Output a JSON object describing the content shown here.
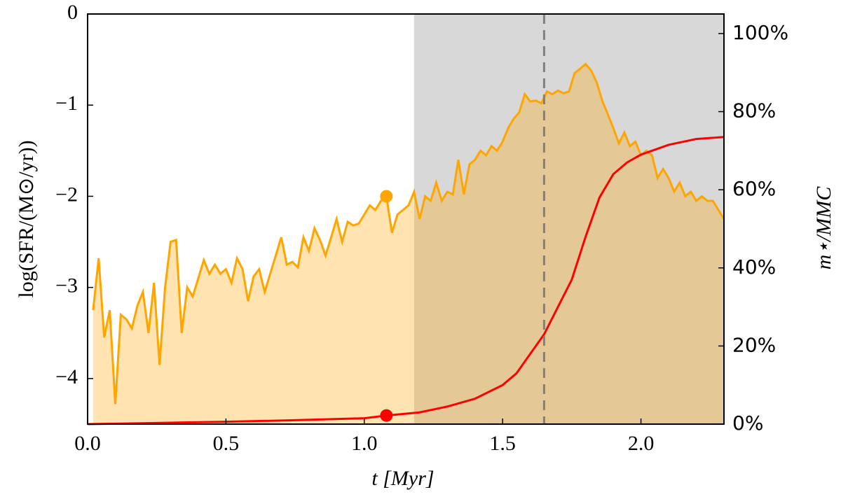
{
  "chart_data": {
    "type": "line",
    "xlabel": "t [Myr]",
    "ylabel": "log(SFR/(M⊙/yr))",
    "y2label": "m⋆/MMC",
    "xlim": [
      0,
      2.3
    ],
    "ylim": [
      -4.5,
      0
    ],
    "y2lim": [
      0,
      105
    ],
    "xticks": [
      {
        "value": 0,
        "label": "0.0"
      },
      0.5,
      {
        "value": 1,
        "label": "1.0"
      },
      1.5,
      {
        "value": 2,
        "label": "2.0"
      }
    ],
    "yticks": [
      {
        "value": -4,
        "label": "−4"
      },
      {
        "value": -3,
        "label": "−3"
      },
      {
        "value": -2,
        "label": "−2"
      },
      {
        "value": -1,
        "label": "−1"
      },
      0
    ],
    "y2ticks": [
      {
        "value": 0,
        "label": "0%"
      },
      {
        "value": 20,
        "label": "20%"
      },
      {
        "value": 40,
        "label": "40%"
      },
      {
        "value": 60,
        "label": "60%"
      },
      {
        "value": 80,
        "label": "80%"
      },
      {
        "value": 100,
        "label": "100%"
      }
    ],
    "shaded_region": [
      1.18,
      2.3
    ],
    "shaded_color": "#a9a9a9",
    "vline": 1.65,
    "vline_color": "#808080",
    "series": [
      {
        "color": "#ffa500",
        "fill": true,
        "x": [
          0.02,
          0.04,
          0.06,
          0.08,
          0.1,
          0.12,
          0.14,
          0.16,
          0.18,
          0.2,
          0.22,
          0.24,
          0.26,
          0.28,
          0.3,
          0.32,
          0.34,
          0.36,
          0.38,
          0.4,
          0.42,
          0.44,
          0.46,
          0.48,
          0.5,
          0.52,
          0.54,
          0.56,
          0.58,
          0.6,
          0.62,
          0.64,
          0.66,
          0.68,
          0.7,
          0.72,
          0.74,
          0.76,
          0.78,
          0.8,
          0.82,
          0.84,
          0.86,
          0.88,
          0.9,
          0.92,
          0.94,
          0.96,
          0.98,
          1.0,
          1.02,
          1.04,
          1.06,
          1.08,
          1.1,
          1.12,
          1.14,
          1.16,
          1.18,
          1.2,
          1.22,
          1.24,
          1.26,
          1.28,
          1.3,
          1.32,
          1.34,
          1.36,
          1.38,
          1.4,
          1.42,
          1.44,
          1.46,
          1.48,
          1.5,
          1.52,
          1.54,
          1.56,
          1.58,
          1.6,
          1.62,
          1.64,
          1.66,
          1.68,
          1.7,
          1.72,
          1.74,
          1.76,
          1.78,
          1.8,
          1.82,
          1.84,
          1.86,
          1.88,
          1.9,
          1.92,
          1.94,
          1.96,
          1.98,
          2.0,
          2.02,
          2.04,
          2.06,
          2.08,
          2.1,
          2.12,
          2.14,
          2.16,
          2.18,
          2.2,
          2.22,
          2.24,
          2.26,
          2.28,
          2.3
        ],
        "values": [
          -3.25,
          -2.68,
          -3.55,
          -3.25,
          -4.28,
          -3.3,
          -3.35,
          -3.45,
          -3.2,
          -3.05,
          -3.5,
          -2.95,
          -3.85,
          -3.0,
          -2.5,
          -2.48,
          -3.5,
          -3.0,
          -3.1,
          -2.9,
          -2.7,
          -2.85,
          -2.75,
          -2.85,
          -2.8,
          -2.95,
          -2.68,
          -2.8,
          -3.15,
          -2.88,
          -2.8,
          -3.05,
          -2.85,
          -2.65,
          -2.45,
          -2.75,
          -2.72,
          -2.78,
          -2.45,
          -2.6,
          -2.35,
          -2.48,
          -2.65,
          -2.45,
          -2.25,
          -2.5,
          -2.28,
          -2.32,
          -2.3,
          -2.2,
          -2.1,
          -2.15,
          -2.05,
          -2.0,
          -2.4,
          -2.2,
          -2.15,
          -2.1,
          -1.95,
          -2.25,
          -2.0,
          -2.05,
          -1.85,
          -2.05,
          -1.95,
          -1.98,
          -1.6,
          -1.98,
          -1.65,
          -1.6,
          -1.5,
          -1.55,
          -1.45,
          -1.5,
          -1.4,
          -1.25,
          -1.15,
          -1.08,
          -0.88,
          -0.96,
          -0.95,
          -0.98,
          -0.85,
          -0.88,
          -0.84,
          -0.87,
          -0.85,
          -0.65,
          -0.6,
          -0.55,
          -0.62,
          -0.75,
          -0.95,
          -1.1,
          -1.25,
          -1.42,
          -1.3,
          -1.45,
          -1.4,
          -1.55,
          -1.5,
          -1.55,
          -1.8,
          -1.7,
          -1.8,
          -1.95,
          -1.85,
          -2.0,
          -1.95,
          -2.05,
          -2.0,
          -2.05,
          -2.05,
          -2.15,
          -2.25
        ]
      },
      {
        "color": "#ff0000",
        "axis": "y2",
        "x": [
          0,
          0.25,
          0.5,
          0.75,
          1.0,
          1.08,
          1.2,
          1.3,
          1.4,
          1.5,
          1.55,
          1.6,
          1.65,
          1.7,
          1.75,
          1.8,
          1.85,
          1.9,
          1.95,
          2.0,
          2.1,
          2.2,
          2.3
        ],
        "values": [
          0,
          0.3,
          0.6,
          1.0,
          1.5,
          2.2,
          3,
          4.5,
          6.5,
          10,
          13,
          18,
          23,
          30,
          37,
          48,
          58,
          64,
          67,
          69,
          71.5,
          73,
          73.5
        ]
      }
    ],
    "markers": [
      {
        "x": 1.08,
        "y": -2.0,
        "color": "#ffa500"
      },
      {
        "x": 1.08,
        "y": 2.2,
        "color": "#ff0000",
        "axis": "y2"
      }
    ]
  }
}
